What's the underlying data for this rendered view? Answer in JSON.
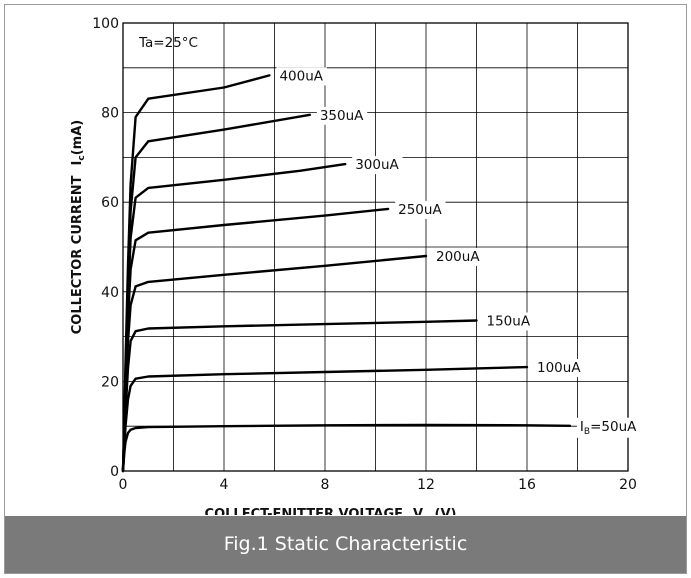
{
  "caption": "Fig.1 Static Characteristic",
  "chart_data": {
    "type": "line",
    "title": "",
    "condition": "Ta=25°C",
    "xlabel": {
      "main": "COLLECT-ENITTER VOLTAGE",
      "symbol": "V",
      "subscript": "ce",
      "unit": "(V)"
    },
    "ylabel": {
      "main": "COLLECTOR CURRENT",
      "symbol": "I",
      "subscript": "c",
      "unit": "(mA)"
    },
    "xlim": [
      0,
      20
    ],
    "ylim": [
      0,
      100
    ],
    "xticks": [
      0,
      4,
      8,
      12,
      16,
      20
    ],
    "yticks": [
      0,
      20,
      40,
      60,
      80,
      100
    ],
    "grid": true,
    "colors": {
      "curve": "#000000",
      "grid": "#000000",
      "caption_bg": "#7a7a7a"
    },
    "series": [
      {
        "label": "IB=50uA",
        "label_prefix": "I",
        "label_sub": "B",
        "label_rest": "=50uA",
        "x": [
          0,
          0.05,
          0.1,
          0.2,
          0.3,
          0.5,
          1,
          4,
          8,
          12,
          16,
          17.7
        ],
        "y": [
          0,
          4,
          6.5,
          8.5,
          9.2,
          9.6,
          9.8,
          10,
          10.2,
          10.3,
          10.2,
          10.1
        ]
      },
      {
        "label": "100uA",
        "x": [
          0,
          0.05,
          0.1,
          0.2,
          0.3,
          0.5,
          1,
          4,
          8,
          12,
          16
        ],
        "y": [
          0,
          5,
          10,
          16,
          19,
          20.6,
          21.1,
          21.6,
          22.1,
          22.6,
          23.2
        ]
      },
      {
        "label": "150uA",
        "x": [
          0,
          0.05,
          0.1,
          0.2,
          0.3,
          0.5,
          1,
          4,
          8,
          12,
          14
        ],
        "y": [
          0,
          6,
          13,
          23,
          29,
          31.2,
          31.8,
          32.3,
          32.8,
          33.3,
          33.6
        ]
      },
      {
        "label": "200uA",
        "x": [
          0,
          0.05,
          0.1,
          0.2,
          0.3,
          0.5,
          1,
          4,
          8,
          12
        ],
        "y": [
          0,
          7,
          16,
          29,
          37,
          41.2,
          42.2,
          43.8,
          45.8,
          48
        ]
      },
      {
        "label": "250uA",
        "x": [
          0,
          0.05,
          0.1,
          0.2,
          0.3,
          0.5,
          1,
          4,
          8,
          10.5
        ],
        "y": [
          0,
          8,
          18,
          34,
          45,
          51.5,
          53.2,
          54.9,
          57,
          58.5
        ]
      },
      {
        "label": "300uA",
        "x": [
          0,
          0.05,
          0.1,
          0.2,
          0.3,
          0.5,
          1,
          4,
          7,
          8.8
        ],
        "y": [
          0,
          9,
          20,
          38,
          52,
          61,
          63.2,
          65,
          67,
          68.5
        ]
      },
      {
        "label": "350uA",
        "x": [
          0,
          0.05,
          0.1,
          0.2,
          0.3,
          0.5,
          1,
          4,
          7.4
        ],
        "y": [
          0,
          10,
          22,
          42,
          58,
          70,
          73.6,
          76.2,
          79.5
        ]
      },
      {
        "label": "400uA",
        "x": [
          0,
          0.05,
          0.1,
          0.2,
          0.3,
          0.5,
          1,
          4,
          5.8
        ],
        "y": [
          0,
          11,
          24,
          46,
          64,
          79,
          83.1,
          85.6,
          88.3
        ]
      }
    ]
  }
}
